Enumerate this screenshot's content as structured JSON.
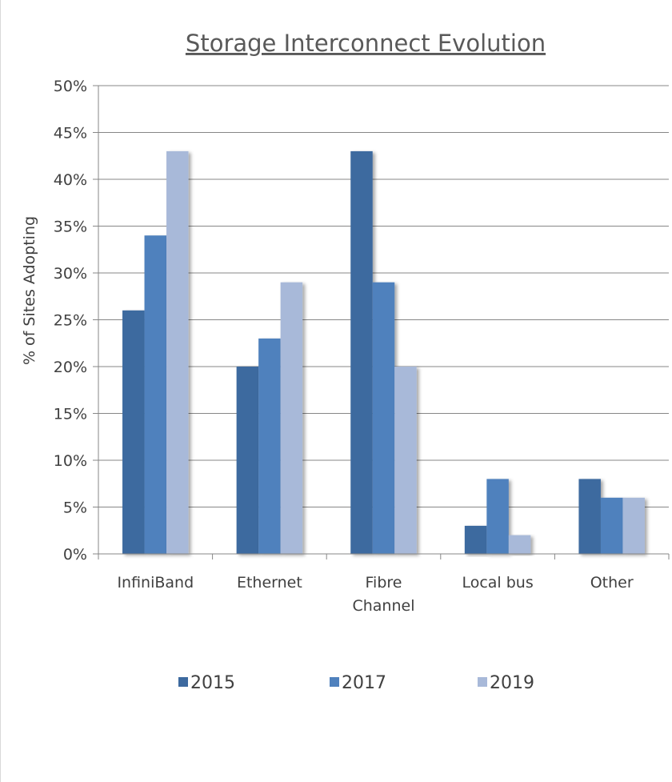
{
  "chart_data": {
    "type": "bar",
    "title": "Storage Interconnect Evolution",
    "xlabel": "",
    "ylabel": "% of Sites Adopting",
    "categories": [
      "InfiniBand",
      "Ethernet",
      "Fibre Channel",
      "Local bus",
      "Other"
    ],
    "category_lines": [
      [
        "InfiniBand"
      ],
      [
        "Ethernet"
      ],
      [
        "Fibre",
        "Channel"
      ],
      [
        "Local bus"
      ],
      [
        "Other"
      ]
    ],
    "series": [
      {
        "name": "2015",
        "color": "#3d6a9f",
        "values": [
          26,
          20,
          43,
          3,
          8
        ]
      },
      {
        "name": "2017",
        "color": "#4f81bd",
        "values": [
          34,
          23,
          29,
          8,
          6
        ]
      },
      {
        "name": "2019",
        "color": "#a8b9d9",
        "values": [
          43,
          29,
          20,
          2,
          6
        ]
      }
    ],
    "ylim": [
      0,
      50
    ],
    "yticks": [
      0,
      5,
      10,
      15,
      20,
      25,
      30,
      35,
      40,
      45,
      50
    ],
    "ytick_labels": [
      "0%",
      "5%",
      "10%",
      "15%",
      "20%",
      "25%",
      "30%",
      "35%",
      "40%",
      "45%",
      "50%"
    ],
    "grid": true,
    "legend_position": "bottom"
  }
}
